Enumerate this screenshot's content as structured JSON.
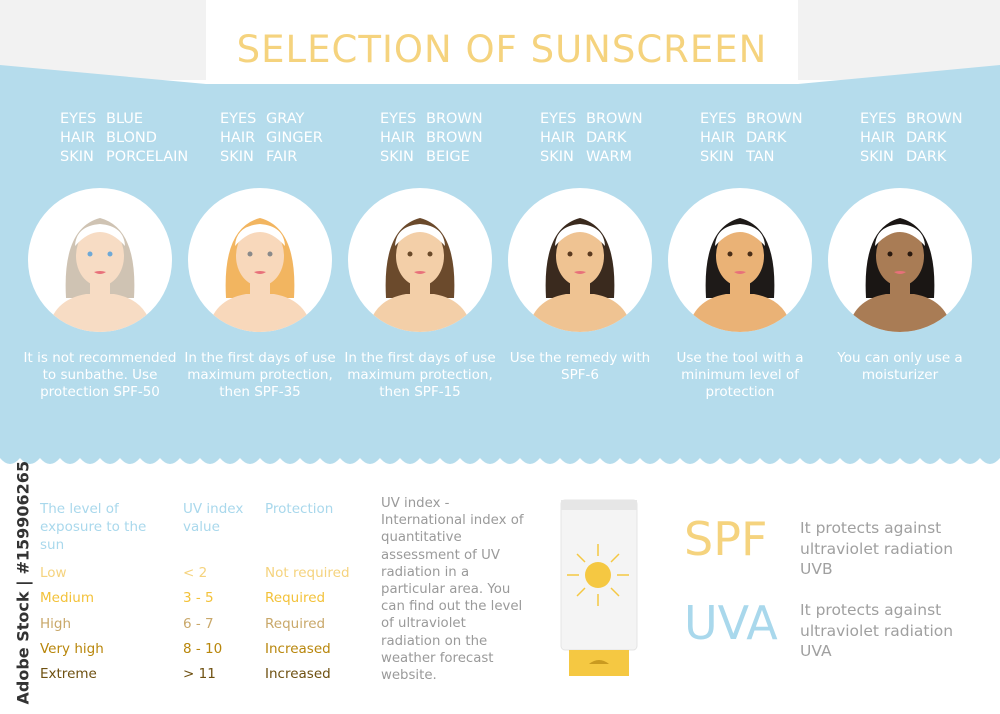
{
  "title": "SELECTION OF SUNSCREEN",
  "labels": {
    "eyes": "EYES",
    "hair": "HAIR",
    "skin": "SKIN"
  },
  "colors": {
    "band": "#b5dcec",
    "title": "#f5d37e",
    "spf": "#f5d37e",
    "uva": "#a9d8ec"
  },
  "types": [
    {
      "eyes": "BLUE",
      "hair": "BLOND",
      "skin": "PORCELAIN",
      "desc": "It is not recommended to sunbathe. Use protection SPF-50",
      "hair_color": "#cfc3b3",
      "skin_color": "#f7dcc4",
      "eye_color": "#6fa9d6"
    },
    {
      "eyes": "GRAY",
      "hair": "GINGER",
      "skin": "FAIR",
      "desc": "In the first days of use maximum protection, then SPF-35",
      "hair_color": "#f2b560",
      "skin_color": "#f8d8bb",
      "eye_color": "#8a8a8a"
    },
    {
      "eyes": "BROWN",
      "hair": "BROWN",
      "skin": "BEIGE",
      "desc": "In the first days of use maximum protection, then SPF-15",
      "hair_color": "#6b4a2c",
      "skin_color": "#f3cfa8",
      "eye_color": "#6a4a2a"
    },
    {
      "eyes": "BROWN",
      "hair": "DARK",
      "skin": "WARM",
      "desc": "Use the remedy with SPF-6",
      "hair_color": "#3a2a1e",
      "skin_color": "#efc392",
      "eye_color": "#5a3a20"
    },
    {
      "eyes": "BROWN",
      "hair": "DARK",
      "skin": "TAN",
      "desc": "Use the tool with a minimum level of protection",
      "hair_color": "#1e1a18",
      "skin_color": "#eab276",
      "eye_color": "#4a2e18"
    },
    {
      "eyes": "BROWN",
      "hair": "DARK",
      "skin": "DARK",
      "desc": "You can only use a moisturizer",
      "hair_color": "#1a1614",
      "skin_color": "#a97c55",
      "eye_color": "#2a1a10"
    }
  ],
  "table": {
    "headers": [
      "The level of exposure to the sun",
      "UV index value",
      "Protection"
    ],
    "rows": [
      {
        "level": "Low",
        "uv": "< 2",
        "protection": "Not required",
        "color": "#f5d37e"
      },
      {
        "level": "Medium",
        "uv": "3 - 5",
        "protection": "Required",
        "color": "#f3c23a"
      },
      {
        "level": "High",
        "uv": "6 - 7",
        "protection": "Required",
        "color": "#c9a86a"
      },
      {
        "level": "Very high",
        "uv": "8 - 10",
        "protection": "Increased",
        "color": "#b8860b"
      },
      {
        "level": "Extreme",
        "uv": "> 11",
        "protection": "Increased",
        "color": "#6e5010"
      }
    ]
  },
  "uv_info": "UV index - International index of quantitative assessment of UV radiation in a particular area. You can find out the level of ultraviolet radiation on the weather forecast website.",
  "spf": {
    "label": "SPF",
    "desc": "It protects against ultraviolet radiation UVB"
  },
  "uva": {
    "label": "UVA",
    "desc": "It protects against ultraviolet radiation UVA"
  },
  "watermark": "Adobe Stock | #159906265"
}
